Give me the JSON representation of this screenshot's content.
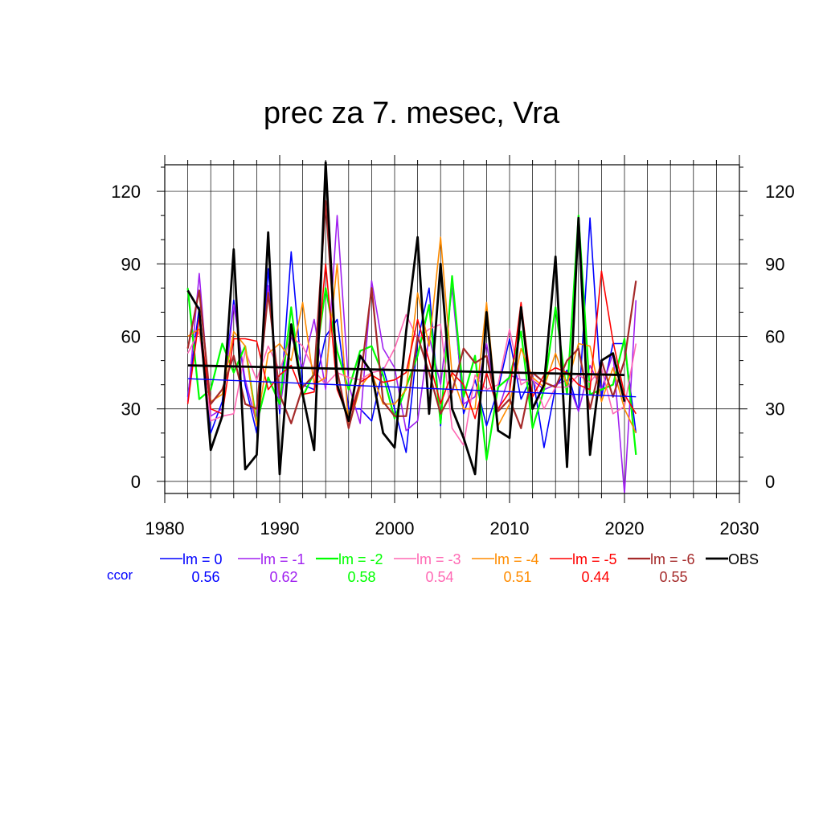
{
  "chart_data": {
    "type": "line",
    "title": "prec za 7. mesec, Vra",
    "xlabel": "",
    "ylabel": "",
    "xlim": [
      1980,
      2030
    ],
    "ylim": [
      -5,
      131
    ],
    "xticks": [
      1980,
      1990,
      2000,
      2010,
      2020,
      2030
    ],
    "yticks": [
      0,
      30,
      60,
      90,
      120
    ],
    "grid": true,
    "legend_position": "bottom",
    "ccor_label": "ccor",
    "years": [
      1982,
      1983,
      1984,
      1985,
      1986,
      1987,
      1988,
      1989,
      1990,
      1991,
      1992,
      1993,
      1994,
      1995,
      1996,
      1997,
      1998,
      1999,
      2000,
      2001,
      2002,
      2003,
      2004,
      2005,
      2006,
      2007,
      2008,
      2009,
      2010,
      2011,
      2012,
      2013,
      2014,
      2015,
      2016,
      2017,
      2018,
      2019,
      2020,
      2021
    ],
    "series": [
      {
        "name": "lm = 0",
        "ccor": "0.56",
        "color": "#0000ff",
        "width": 1.6,
        "values": [
          35,
          72,
          20,
          33,
          75,
          40,
          20,
          88,
          28,
          95,
          40,
          38,
          60,
          67,
          30,
          30,
          25,
          47,
          30,
          12,
          58,
          80,
          23,
          85,
          28,
          42,
          23,
          38,
          59,
          34,
          44,
          14,
          39,
          46,
          29,
          109,
          35,
          57,
          57,
          20
        ]
      },
      {
        "name": "lm = -1",
        "ccor": "0.62",
        "color": "#a020f0",
        "width": 1.6,
        "values": [
          33,
          86,
          27,
          30,
          73,
          42,
          24,
          81,
          30,
          60,
          47,
          67,
          38,
          110,
          40,
          24,
          83,
          55,
          47,
          21,
          25,
          60,
          40,
          80,
          32,
          35,
          57,
          29,
          44,
          42,
          42,
          38,
          40,
          42,
          29,
          48,
          38,
          53,
          -5,
          75
        ]
      },
      {
        "name": "lm = -2",
        "ccor": "0.58",
        "color": "#00ff00",
        "width": 2.2,
        "values": [
          80,
          34,
          38,
          57,
          45,
          56,
          24,
          43,
          32,
          72,
          35,
          45,
          80,
          54,
          38,
          54,
          56,
          44,
          26,
          39,
          52,
          73,
          24,
          85,
          35,
          52,
          9,
          39,
          43,
          62,
          22,
          38,
          72,
          36,
          110,
          36,
          38,
          40,
          59,
          11
        ]
      },
      {
        "name": "lm = -3",
        "ccor": "0.54",
        "color": "#ff69b4",
        "width": 1.6,
        "values": [
          53,
          62,
          25,
          27,
          28,
          54,
          42,
          56,
          46,
          60,
          56,
          46,
          40,
          45,
          43,
          42,
          45,
          46,
          55,
          69,
          59,
          63,
          65,
          22,
          15,
          44,
          38,
          40,
          63,
          40,
          43,
          30,
          39,
          39,
          44,
          41,
          47,
          28,
          31,
          57
        ]
      },
      {
        "name": "lm = -4",
        "ccor": "0.51",
        "color": "#ff8c00",
        "width": 1.6,
        "values": [
          60,
          63,
          33,
          36,
          62,
          56,
          23,
          53,
          57,
          50,
          74,
          40,
          43,
          90,
          22,
          39,
          45,
          32,
          32,
          38,
          78,
          56,
          101,
          44,
          30,
          30,
          74,
          23,
          32,
          55,
          43,
          39,
          53,
          40,
          57,
          56,
          33,
          47,
          30,
          20
        ]
      },
      {
        "name": "lm = -5",
        "ccor": "0.44",
        "color": "#ff0000",
        "width": 1.6,
        "values": [
          32,
          68,
          30,
          28,
          59,
          59,
          58,
          38,
          44,
          48,
          36,
          37,
          90,
          38,
          26,
          41,
          44,
          41,
          42,
          45,
          67,
          50,
          32,
          45,
          40,
          26,
          45,
          30,
          37,
          74,
          35,
          44,
          47,
          45,
          40,
          38,
          87,
          58,
          36,
          28
        ]
      },
      {
        "name": "lm = -6",
        "ccor": "0.55",
        "color": "#a52a2a",
        "width": 2.2,
        "values": [
          55,
          79,
          32,
          38,
          52,
          32,
          30,
          78,
          36,
          24,
          39,
          44,
          116,
          46,
          22,
          41,
          80,
          33,
          27,
          27,
          60,
          45,
          28,
          37,
          55,
          49,
          52,
          29,
          34,
          22,
          45,
          41,
          39,
          50,
          55,
          30,
          50,
          35,
          50,
          83
        ]
      },
      {
        "name": "OBS",
        "ccor": "",
        "color": "#000000",
        "width": 2.8,
        "values": [
          79,
          71,
          13,
          27,
          96,
          5,
          11,
          103,
          3,
          65,
          36,
          13,
          132,
          40,
          25,
          52,
          45,
          20,
          14,
          62,
          101,
          28,
          90,
          30,
          18,
          3,
          70,
          21,
          18,
          72,
          30,
          40,
          93,
          6,
          109,
          11,
          50,
          53,
          33,
          null
        ]
      }
    ],
    "trends": [
      {
        "name": "trend-lm-0",
        "color": "#0000ff",
        "width": 1.4,
        "x": [
          1982,
          2021
        ],
        "values": [
          42.5,
          35
        ]
      },
      {
        "name": "trend-obs",
        "color": "#000000",
        "width": 2.8,
        "x": [
          1982,
          2020
        ],
        "values": [
          48,
          44
        ]
      }
    ]
  }
}
